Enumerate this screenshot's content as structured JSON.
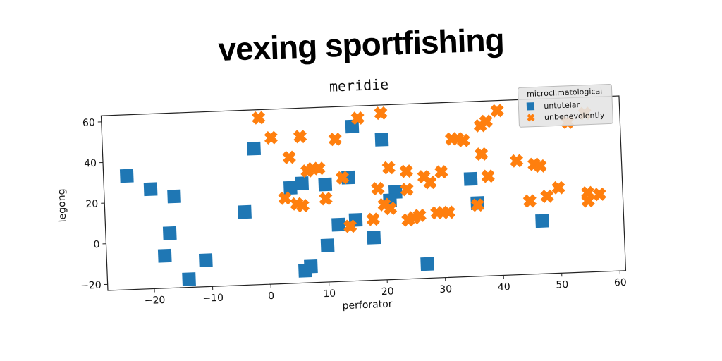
{
  "chart_data": {
    "type": "scatter",
    "title": "vexing sportfishing",
    "subtitle": "meridie",
    "xlabel": "perforator",
    "ylabel": "legong",
    "xlim": [
      -28,
      61
    ],
    "ylim": [
      -23,
      63
    ],
    "xticks": [
      -20,
      -10,
      0,
      10,
      20,
      30,
      40,
      50,
      60
    ],
    "yticks": [
      -20,
      0,
      20,
      40,
      60
    ],
    "grid": false,
    "legend": {
      "title": "microclimatological",
      "placement": "top-right"
    },
    "series": [
      {
        "name": "untutelar",
        "marker": "square",
        "color": "#1f77b4",
        "points": [
          [
            -24,
            33
          ],
          [
            -20,
            26
          ],
          [
            -16,
            22
          ],
          [
            -17,
            4
          ],
          [
            -18,
            -7
          ],
          [
            -14,
            -19
          ],
          [
            -11,
            -10
          ],
          [
            -4,
            13
          ],
          [
            -2,
            44
          ],
          [
            4,
            24
          ],
          [
            6,
            26
          ],
          [
            10,
            25
          ],
          [
            12,
            5
          ],
          [
            14,
            28
          ],
          [
            15,
            7
          ],
          [
            15,
            53
          ],
          [
            10,
            -5
          ],
          [
            7,
            -15
          ],
          [
            6,
            -17
          ],
          [
            18,
            -2
          ],
          [
            20,
            46
          ],
          [
            22,
            20
          ],
          [
            21,
            16
          ],
          [
            27,
            -16
          ],
          [
            35,
            25
          ],
          [
            36,
            13
          ],
          [
            47,
            3
          ]
        ]
      },
      {
        "name": "unbenevolently",
        "marker": "x",
        "color": "#ff7f0e",
        "points": [
          [
            -1,
            59
          ],
          [
            1,
            49
          ],
          [
            3,
            19
          ],
          [
            4,
            39
          ],
          [
            5,
            16
          ],
          [
            6,
            15
          ],
          [
            6,
            49
          ],
          [
            7,
            32
          ],
          [
            8,
            33
          ],
          [
            9,
            33
          ],
          [
            10,
            18
          ],
          [
            12,
            47
          ],
          [
            13,
            28
          ],
          [
            14,
            4
          ],
          [
            16,
            57
          ],
          [
            18,
            7
          ],
          [
            19,
            22
          ],
          [
            20,
            14
          ],
          [
            21,
            12
          ],
          [
            20,
            59
          ],
          [
            21,
            32
          ],
          [
            24,
            6
          ],
          [
            25,
            7
          ],
          [
            26,
            8
          ],
          [
            24,
            30
          ],
          [
            24,
            21
          ],
          [
            27,
            27
          ],
          [
            28,
            24
          ],
          [
            29,
            9
          ],
          [
            30,
            29
          ],
          [
            30,
            9
          ],
          [
            31,
            9
          ],
          [
            32,
            45
          ],
          [
            33,
            45
          ],
          [
            34,
            44
          ],
          [
            36,
            12
          ],
          [
            37,
            37
          ],
          [
            37,
            51
          ],
          [
            38,
            53
          ],
          [
            38,
            26
          ],
          [
            40,
            58
          ],
          [
            43,
            33
          ],
          [
            45,
            13
          ],
          [
            46,
            31
          ],
          [
            47,
            30
          ],
          [
            48,
            15
          ],
          [
            50,
            19
          ],
          [
            52,
            51
          ],
          [
            55,
            55
          ],
          [
            55,
            12
          ],
          [
            55,
            16
          ],
          [
            57,
            15
          ]
        ]
      }
    ]
  }
}
